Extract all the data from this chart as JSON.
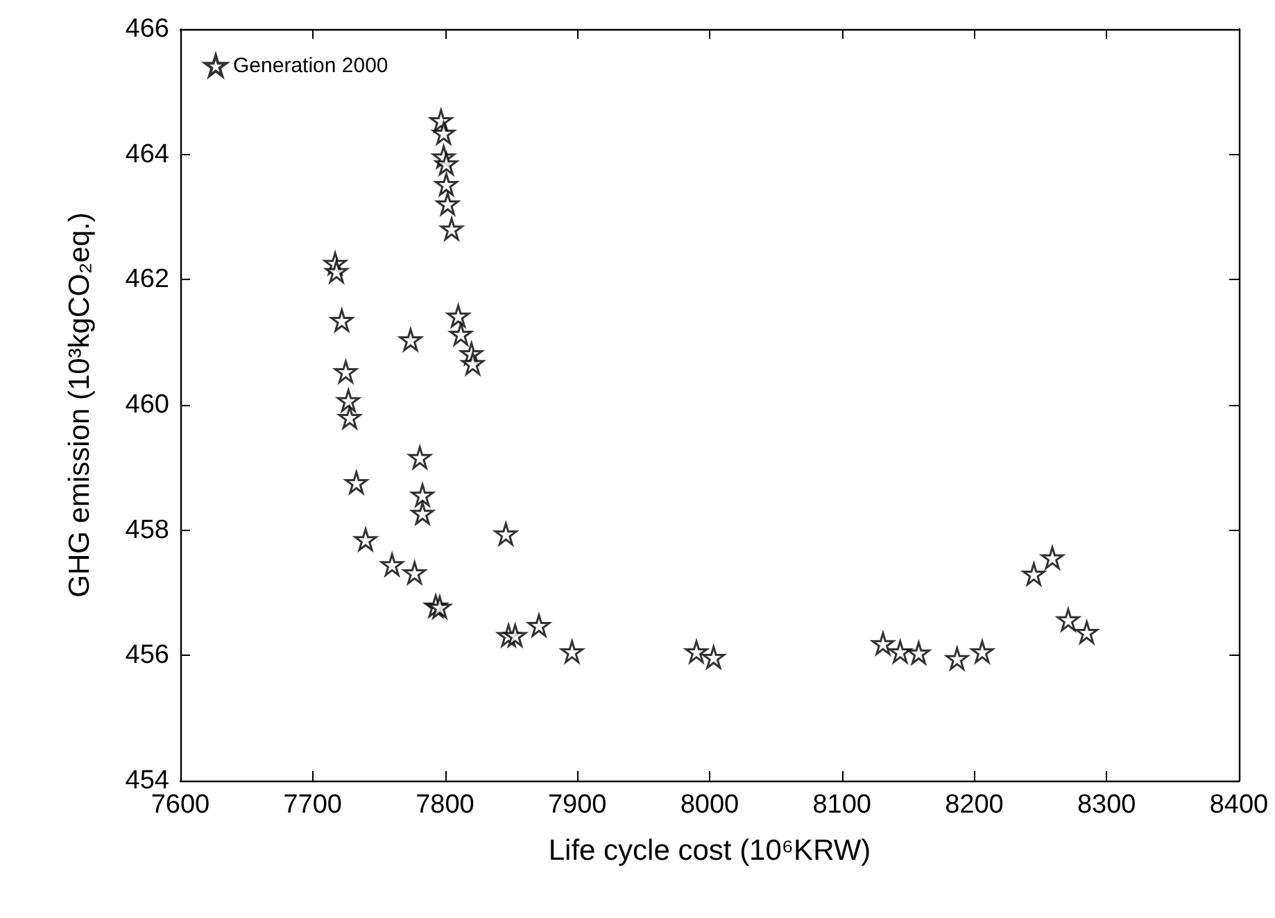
{
  "chart_data": {
    "type": "scatter",
    "xlabel": "Life cycle cost (10⁶KRW)",
    "ylabel": "GHG emission (10³kgCO₂eq.)",
    "xlim": [
      7600,
      8400
    ],
    "xticks": [
      7600,
      7700,
      7800,
      7900,
      8000,
      8100,
      8200,
      8300,
      8400
    ],
    "ylim": [
      454,
      466
    ],
    "yticks": [
      454,
      456,
      458,
      460,
      462,
      464,
      466
    ],
    "grid": false,
    "legend": "top left",
    "marker": "star",
    "series": [
      {
        "name": "Generation 2000",
        "color": "#000000",
        "x": [
          7797,
          7799,
          7799,
          7801,
          7801,
          7802,
          7805,
          7717,
          7718,
          7722,
          7774,
          7810,
          7812,
          7820,
          7821,
          7725,
          7727,
          7728,
          7781,
          7733,
          7783,
          7783,
          7740,
          7760,
          7777,
          7793,
          7796,
          7846,
          7848,
          7853,
          7871,
          7896,
          7990,
          8003,
          8131,
          8144,
          8158,
          8187,
          8206,
          8245,
          8259,
          8271,
          8285
        ],
        "values": [
          464.54,
          464.34,
          463.96,
          463.85,
          463.52,
          463.21,
          462.81,
          462.26,
          462.13,
          461.35,
          461.04,
          461.42,
          461.13,
          460.82,
          460.66,
          460.53,
          460.07,
          459.8,
          459.16,
          458.76,
          458.56,
          458.27,
          457.85,
          457.45,
          457.32,
          456.79,
          456.77,
          457.94,
          456.32,
          456.32,
          456.48,
          456.06,
          456.06,
          455.97,
          456.19,
          456.06,
          456.04,
          455.95,
          456.06,
          457.3,
          457.56,
          456.57,
          456.37
        ]
      }
    ]
  }
}
